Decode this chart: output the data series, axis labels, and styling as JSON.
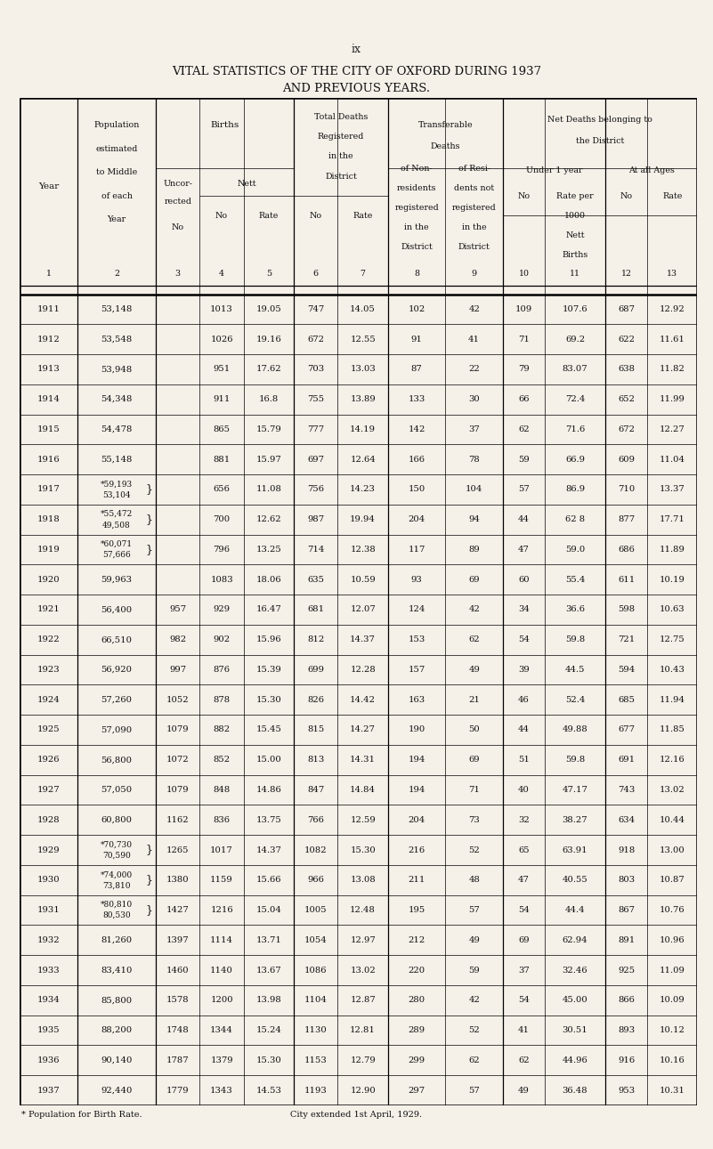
{
  "page_num": "ix",
  "title_line1": "VITAL STATISTICS OF THE CITY OF OXFORD DURING 1937",
  "title_line2": "AND PREVIOUS YEARS.",
  "bg_color": "#f5f0e8",
  "footnote1": "* Population for Birth Rate.",
  "footnote2": "City extended 1st April, 1929.",
  "rows": [
    {
      "year": "1911",
      "pop": "53,148",
      "pop2": "",
      "uncor": "",
      "nett_no": "1013",
      "nett_rate": "19.05",
      "td_no": "747",
      "td_rate": "14.05",
      "nonres": "102",
      "resi": "42",
      "u1_no": "109",
      "u1_rate": "107.6",
      "aa_no": "687",
      "aa_rate": "12.92"
    },
    {
      "year": "1912",
      "pop": "53,548",
      "pop2": "",
      "uncor": "",
      "nett_no": "1026",
      "nett_rate": "19.16",
      "td_no": "672",
      "td_rate": "12.55",
      "nonres": "91",
      "resi": "41",
      "u1_no": "71",
      "u1_rate": "69.2",
      "aa_no": "622",
      "aa_rate": "11.61"
    },
    {
      "year": "1913",
      "pop": "53,948",
      "pop2": "",
      "uncor": "",
      "nett_no": "951",
      "nett_rate": "17.62",
      "td_no": "703",
      "td_rate": "13.03",
      "nonres": "87",
      "resi": "22",
      "u1_no": "79",
      "u1_rate": "83.07",
      "aa_no": "638",
      "aa_rate": "11.82"
    },
    {
      "year": "1914",
      "pop": "54,348",
      "pop2": "",
      "uncor": "",
      "nett_no": "911",
      "nett_rate": "16.8",
      "td_no": "755",
      "td_rate": "13.89",
      "nonres": "133",
      "resi": "30",
      "u1_no": "66",
      "u1_rate": "72.4",
      "aa_no": "652",
      "aa_rate": "11.99"
    },
    {
      "year": "1915",
      "pop": "54,478",
      "pop2": "",
      "uncor": "",
      "nett_no": "865",
      "nett_rate": "15.79",
      "td_no": "777",
      "td_rate": "14.19",
      "nonres": "142",
      "resi": "37",
      "u1_no": "62",
      "u1_rate": "71.6",
      "aa_no": "672",
      "aa_rate": "12.27"
    },
    {
      "year": "1916",
      "pop": "55,148",
      "pop2": "",
      "uncor": "",
      "nett_no": "881",
      "nett_rate": "15.97",
      "td_no": "697",
      "td_rate": "12.64",
      "nonres": "166",
      "resi": "78",
      "u1_no": "59",
      "u1_rate": "66.9",
      "aa_no": "609",
      "aa_rate": "11.04"
    },
    {
      "year": "1917",
      "pop": "*59,193",
      "pop2": "53,104",
      "brace": "right",
      "uncor": "",
      "nett_no": "656",
      "nett_rate": "11.08",
      "td_no": "756",
      "td_rate": "14.23",
      "nonres": "150",
      "resi": "104",
      "u1_no": "57",
      "u1_rate": "86.9",
      "aa_no": "710",
      "aa_rate": "13.37"
    },
    {
      "year": "1918",
      "pop": "*55,472",
      "pop2": "49,508",
      "brace": "right",
      "uncor": "",
      "nett_no": "700",
      "nett_rate": "12.62",
      "td_no": "987",
      "td_rate": "19.94",
      "nonres": "204",
      "resi": "94",
      "u1_no": "44",
      "u1_rate": "62 8",
      "aa_no": "877",
      "aa_rate": "17.71"
    },
    {
      "year": "1919",
      "pop": "*60,071",
      "pop2": "57,666",
      "brace": "right",
      "uncor": "",
      "nett_no": "796",
      "nett_rate": "13.25",
      "td_no": "714",
      "td_rate": "12.38",
      "nonres": "117",
      "resi": "89",
      "u1_no": "47",
      "u1_rate": "59.0",
      "aa_no": "686",
      "aa_rate": "11.89"
    },
    {
      "year": "1920",
      "pop": "59,963",
      "pop2": "",
      "uncor": "",
      "nett_no": "1083",
      "nett_rate": "18.06",
      "td_no": "635",
      "td_rate": "10.59",
      "nonres": "93",
      "resi": "69",
      "u1_no": "60",
      "u1_rate": "55.4",
      "aa_no": "611",
      "aa_rate": "10.19"
    },
    {
      "year": "1921",
      "pop": "56,400",
      "pop2": "",
      "uncor": "957",
      "nett_no": "929",
      "nett_rate": "16.47",
      "td_no": "681",
      "td_rate": "12.07",
      "nonres": "124",
      "resi": "42",
      "u1_no": "34",
      "u1_rate": "36.6",
      "aa_no": "598",
      "aa_rate": "10.63"
    },
    {
      "year": "1922",
      "pop": "66,510",
      "pop2": "",
      "uncor": "982",
      "nett_no": "902",
      "nett_rate": "15.96",
      "td_no": "812",
      "td_rate": "14.37",
      "nonres": "153",
      "resi": "62",
      "u1_no": "54",
      "u1_rate": "59.8",
      "aa_no": "721",
      "aa_rate": "12.75"
    },
    {
      "year": "1923",
      "pop": "56,920",
      "pop2": "",
      "uncor": "997",
      "nett_no": "876",
      "nett_rate": "15.39",
      "td_no": "699",
      "td_rate": "12.28",
      "nonres": "157",
      "resi": "49",
      "u1_no": "39",
      "u1_rate": "44.5",
      "aa_no": "594",
      "aa_rate": "10.43"
    },
    {
      "year": "1924",
      "pop": "57,260",
      "pop2": "",
      "uncor": "1052",
      "nett_no": "878",
      "nett_rate": "15.30",
      "td_no": "826",
      "td_rate": "14.42",
      "nonres": "163",
      "resi": "21",
      "u1_no": "46",
      "u1_rate": "52.4",
      "aa_no": "685",
      "aa_rate": "11.94"
    },
    {
      "year": "1925",
      "pop": "57,090",
      "pop2": "",
      "uncor": "1079",
      "nett_no": "882",
      "nett_rate": "15.45",
      "td_no": "815",
      "td_rate": "14.27",
      "nonres": "190",
      "resi": "50",
      "u1_no": "44",
      "u1_rate": "49.88",
      "aa_no": "677",
      "aa_rate": "11.85"
    },
    {
      "year": "1926",
      "pop": "56,800",
      "pop2": "",
      "uncor": "1072",
      "nett_no": "852",
      "nett_rate": "15.00",
      "td_no": "813",
      "td_rate": "14.31",
      "nonres": "194",
      "resi": "69",
      "u1_no": "51",
      "u1_rate": "59.8",
      "aa_no": "691",
      "aa_rate": "12.16"
    },
    {
      "year": "1927",
      "pop": "57,050",
      "pop2": "",
      "uncor": "1079",
      "nett_no": "848",
      "nett_rate": "14.86",
      "td_no": "847",
      "td_rate": "14.84",
      "nonres": "194",
      "resi": "71",
      "u1_no": "40",
      "u1_rate": "47.17",
      "aa_no": "743",
      "aa_rate": "13.02"
    },
    {
      "year": "1928",
      "pop": "60,800",
      "pop2": "",
      "uncor": "1162",
      "nett_no": "836",
      "nett_rate": "13.75",
      "td_no": "766",
      "td_rate": "12.59",
      "nonres": "204",
      "resi": "73",
      "u1_no": "32",
      "u1_rate": "38.27",
      "aa_no": "634",
      "aa_rate": "10.44"
    },
    {
      "year": "1929",
      "pop": "*70,730",
      "pop2": "70,590",
      "brace": "right",
      "uncor": "1265",
      "nett_no": "1017",
      "nett_rate": "14.37",
      "td_no": "1082",
      "td_rate": "15.30",
      "nonres": "216",
      "resi": "52",
      "u1_no": "65",
      "u1_rate": "63.91",
      "aa_no": "918",
      "aa_rate": "13.00"
    },
    {
      "year": "1930",
      "pop": "*74,000",
      "pop2": "73,810",
      "brace": "right",
      "uncor": "1380",
      "nett_no": "1159",
      "nett_rate": "15.66",
      "td_no": "966",
      "td_rate": "13.08",
      "nonres": "211",
      "resi": "48",
      "u1_no": "47",
      "u1_rate": "40.55",
      "aa_no": "803",
      "aa_rate": "10.87"
    },
    {
      "year": "1931",
      "pop": "*80,810",
      "pop2": "80,530",
      "brace": "right",
      "uncor": "1427",
      "nett_no": "1216",
      "nett_rate": "15.04",
      "td_no": "1005",
      "td_rate": "12.48",
      "nonres": "195",
      "resi": "57",
      "u1_no": "54",
      "u1_rate": "44.4",
      "aa_no": "867",
      "aa_rate": "10.76"
    },
    {
      "year": "1932",
      "pop": "81,260",
      "pop2": "",
      "uncor": "1397",
      "nett_no": "1114",
      "nett_rate": "13.71",
      "td_no": "1054",
      "td_rate": "12.97",
      "nonres": "212",
      "resi": "49",
      "u1_no": "69",
      "u1_rate": "62.94",
      "aa_no": "891",
      "aa_rate": "10.96"
    },
    {
      "year": "1933",
      "pop": "83,410",
      "pop2": "",
      "uncor": "1460",
      "nett_no": "1140",
      "nett_rate": "13.67",
      "td_no": "1086",
      "td_rate": "13.02",
      "nonres": "220",
      "resi": "59",
      "u1_no": "37",
      "u1_rate": "32.46",
      "aa_no": "925",
      "aa_rate": "11.09"
    },
    {
      "year": "1934",
      "pop": "85,800",
      "pop2": "",
      "uncor": "1578",
      "nett_no": "1200",
      "nett_rate": "13.98",
      "td_no": "1104",
      "td_rate": "12.87",
      "nonres": "280",
      "resi": "42",
      "u1_no": "54",
      "u1_rate": "45.00",
      "aa_no": "866",
      "aa_rate": "10.09"
    },
    {
      "year": "1935",
      "pop": "88,200",
      "pop2": "",
      "uncor": "1748",
      "nett_no": "1344",
      "nett_rate": "15.24",
      "td_no": "1130",
      "td_rate": "12.81",
      "nonres": "289",
      "resi": "52",
      "u1_no": "41",
      "u1_rate": "30.51",
      "aa_no": "893",
      "aa_rate": "10.12"
    },
    {
      "year": "1936",
      "pop": "90,140",
      "pop2": "",
      "uncor": "1787",
      "nett_no": "1379",
      "nett_rate": "15.30",
      "td_no": "1153",
      "td_rate": "12.79",
      "nonres": "299",
      "resi": "62",
      "u1_no": "62",
      "u1_rate": "44.96",
      "aa_no": "916",
      "aa_rate": "10.16"
    },
    {
      "year": "1937",
      "pop": "92,440",
      "pop2": "",
      "uncor": "1779",
      "nett_no": "1343",
      "nett_rate": "14.53",
      "td_no": "1193",
      "td_rate": "12.90",
      "nonres": "297",
      "resi": "57",
      "u1_no": "49",
      "u1_rate": "36.48",
      "aa_no": "953",
      "aa_rate": "10.31"
    }
  ]
}
